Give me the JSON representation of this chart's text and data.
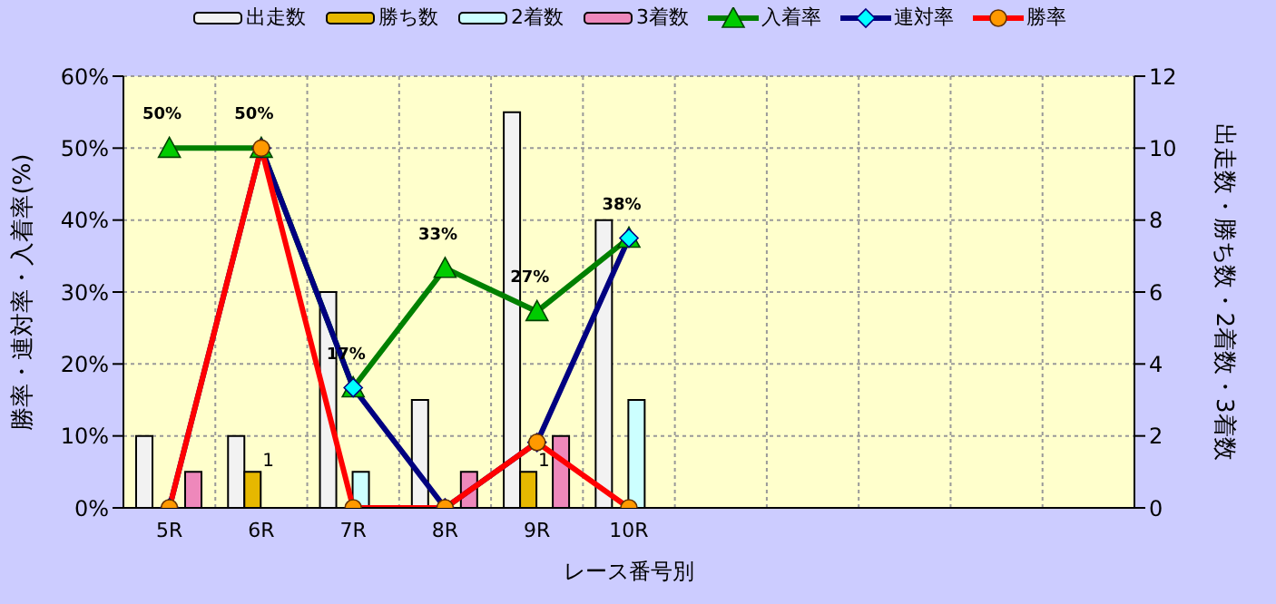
{
  "chart_data": {
    "type": "bar",
    "xlabel": "レース番号別",
    "ylabel": "勝率・連対率・入着率(%)",
    "y2label": "出走数・勝ち数・2着数・3着数",
    "categories": [
      "5R",
      "6R",
      "7R",
      "8R",
      "9R",
      "10R",
      null,
      null,
      null,
      null,
      null
    ],
    "series": [
      {
        "name": "出走数",
        "axis": "y2",
        "color": "#f2f2f2",
        "values": [
          2,
          2,
          6,
          3,
          11,
          8,
          null,
          null,
          null,
          null,
          null
        ]
      },
      {
        "name": "勝ち数",
        "axis": "y2",
        "color": "#e6b800",
        "values": [
          0,
          1,
          0,
          0,
          1,
          0,
          null,
          null,
          null,
          null,
          null
        ],
        "value_labels": [
          null,
          "1",
          null,
          null,
          "1",
          null,
          null,
          null,
          null,
          null,
          null
        ]
      },
      {
        "name": "2着数",
        "axis": "y2",
        "color": "#ccffff",
        "values": [
          0,
          0,
          1,
          0,
          0,
          3,
          null,
          null,
          null,
          null,
          null
        ]
      },
      {
        "name": "3着数",
        "axis": "y2",
        "color": "#ee88bb",
        "values": [
          1,
          0,
          0,
          1,
          2,
          0,
          null,
          null,
          null,
          null,
          null
        ]
      },
      {
        "name": "入着率",
        "type": "line",
        "axis": "y",
        "color": "#008000",
        "marker": "triangle",
        "values": [
          50,
          50,
          16.7,
          33.3,
          27.3,
          37.5,
          null,
          null,
          null,
          null,
          null
        ],
        "value_labels": [
          "50%",
          "50%",
          "17%",
          "33%",
          "27%",
          "38%",
          null,
          null,
          null,
          null,
          null
        ]
      },
      {
        "name": "連対率",
        "type": "line",
        "axis": "y",
        "color": "#000080",
        "marker": "diamond",
        "values": [
          0,
          50,
          16.7,
          0,
          9.1,
          37.5,
          null,
          null,
          null,
          null,
          null
        ]
      },
      {
        "name": "勝率",
        "type": "line",
        "axis": "y",
        "color": "#ff0000",
        "marker": "circle",
        "values": [
          0,
          50,
          0,
          0,
          9.1,
          0,
          null,
          null,
          null,
          null,
          null
        ]
      }
    ],
    "ylim": [
      0,
      60
    ],
    "yticks": [
      {
        "value": 0,
        "label": "0%"
      },
      {
        "value": 10,
        "label": "10%"
      },
      {
        "value": 20,
        "label": "20%"
      },
      {
        "value": 30,
        "label": "30%"
      },
      {
        "value": 40,
        "label": "40%"
      },
      {
        "value": 50,
        "label": "50%"
      },
      {
        "value": 60,
        "label": "60%"
      }
    ],
    "y2lim": [
      0,
      12
    ],
    "y2ticks": [
      0,
      2,
      4,
      6,
      8,
      10,
      12
    ],
    "grid": true,
    "legend": "top"
  }
}
